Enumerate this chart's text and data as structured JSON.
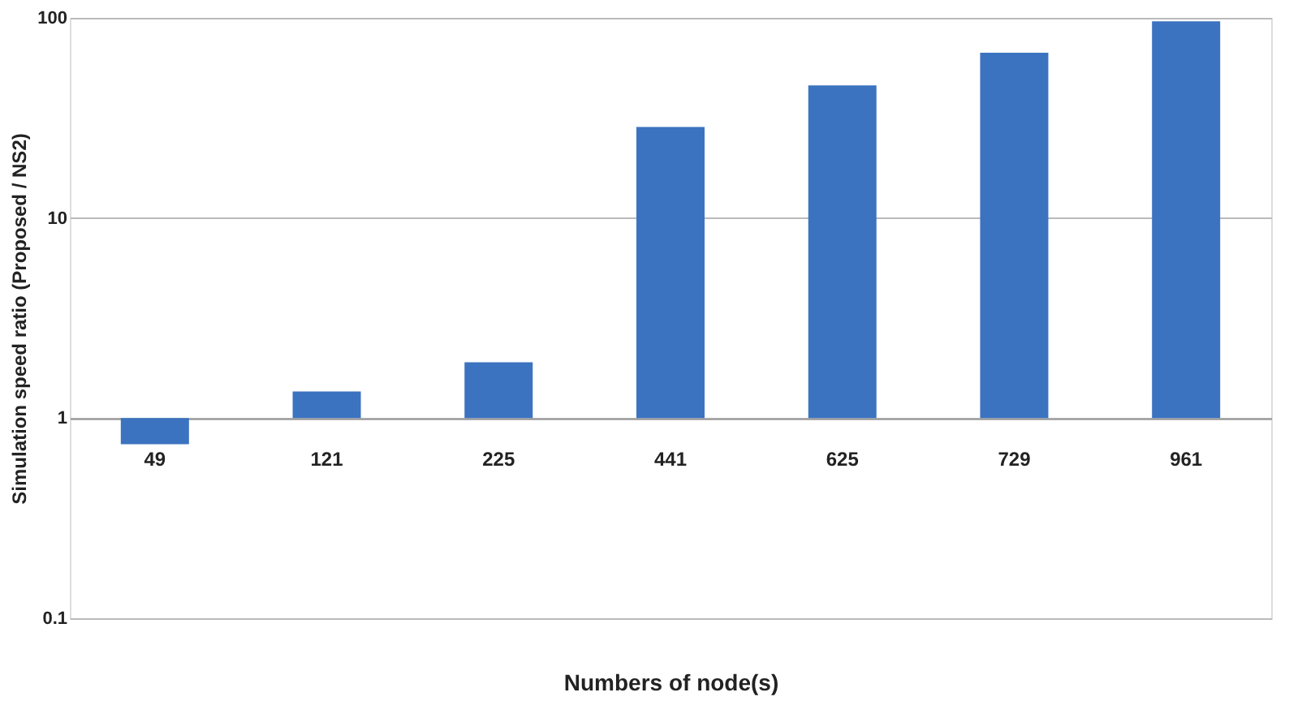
{
  "chart_data": {
    "type": "bar",
    "categories": [
      "49",
      "121",
      "225",
      "441",
      "625",
      "729",
      "961"
    ],
    "base": [
      1,
      1,
      1,
      1,
      1,
      1,
      1
    ],
    "values": [
      -0.26,
      0.36,
      0.9,
      27.5,
      45,
      66,
      95
    ],
    "color": "#3b73c0",
    "xlabel": "Numbers of node(s)",
    "ylabel": "Simulation speed ratio (Proposed / NS2)",
    "log": true,
    "ylim": [
      0.1,
      100
    ],
    "yticks": [
      0.1,
      1,
      10,
      100
    ],
    "grid": "y"
  }
}
